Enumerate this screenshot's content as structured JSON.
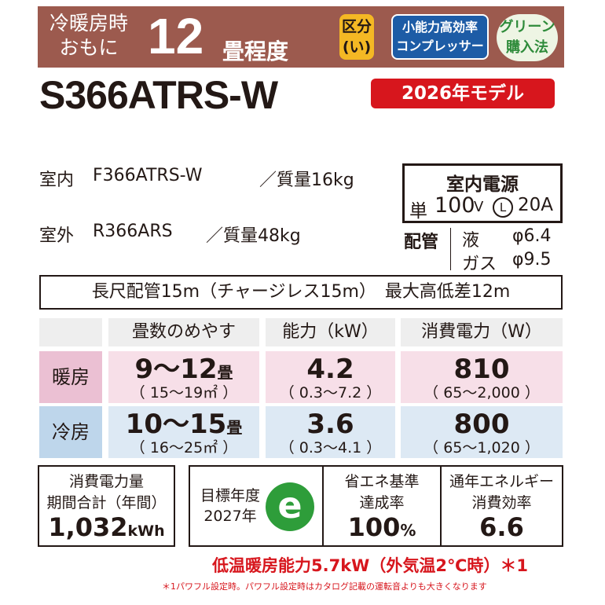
{
  "header": {
    "line1": "冷暖房時",
    "line2": "おもに",
    "tatami": "12",
    "unit": "畳程度",
    "badge_category": [
      "区分",
      "(い)"
    ],
    "badge_compressor": [
      "小能力高効率",
      "コンプレッサー"
    ],
    "badge_green": [
      "グリーン",
      "購入法"
    ]
  },
  "model": "S366ATRS-W",
  "year_badge": "2026年モデル",
  "indoor": {
    "label": "室内",
    "model": "F366ATRS-W",
    "weight": "／質量16kg"
  },
  "outdoor": {
    "label": "室外",
    "model": "R366ARS",
    "weight": "／質量48kg"
  },
  "power": {
    "title": "室内電源",
    "phase": "単",
    "voltage": "100",
    "volt_unit": "V",
    "plug": "L",
    "current": "20A"
  },
  "piping": {
    "label": "配管",
    "liquid": "液",
    "liquid_val": "φ6.4",
    "gas": "ガス",
    "gas_val": "φ9.5"
  },
  "pipe_length": "長尺配管15m（チャージレス15m）　最大高低差12m",
  "table": {
    "headers": [
      "畳数のめやす",
      "能力（kW）",
      "消費電力（W）"
    ],
    "rows": [
      {
        "label": "暖房",
        "tatami": "9～12",
        "tatami_unit": "畳",
        "tatami_range": "（ 15～19㎡ ）",
        "capacity": "4.2",
        "capacity_range": "（ 0.3～7.2 ）",
        "power": "810",
        "power_range": "（ 65～2,000 ）"
      },
      {
        "label": "冷房",
        "tatami": "10～15",
        "tatami_unit": "畳",
        "tatami_range": "（ 16～25㎡ ）",
        "capacity": "3.6",
        "capacity_range": "（ 0.3～4.1 ）",
        "power": "800",
        "power_range": "（ 65～1,020 ）"
      }
    ]
  },
  "annual": {
    "line1": "消費電力量",
    "line2": "期間合計（年間）",
    "value": "1,032",
    "unit": "kWh"
  },
  "target": {
    "line1": "目標年度",
    "line2": "2027年",
    "logo": "e"
  },
  "achievement": {
    "line1": "省エネ基準",
    "line2": "達成率",
    "value": "100",
    "unit": "%"
  },
  "apf": {
    "line1": "通年エネルギー",
    "line2": "消費効率",
    "value": "6.6"
  },
  "low_temp": "低温暖房能力5.7kW（外気温2℃時）＊1",
  "footnote": "＊1パワフル設定時。パワフル設定時はカタログ記載の運転音よりも大きくなります",
  "colors": {
    "header": "#9c5a4e",
    "red": "#d7161d",
    "heat": "#f7dfe8",
    "heat_label": "#ebc0d3",
    "cool": "#dde9f4",
    "cool_label": "#bed6eb",
    "eco_green": "#2e9d3a"
  }
}
